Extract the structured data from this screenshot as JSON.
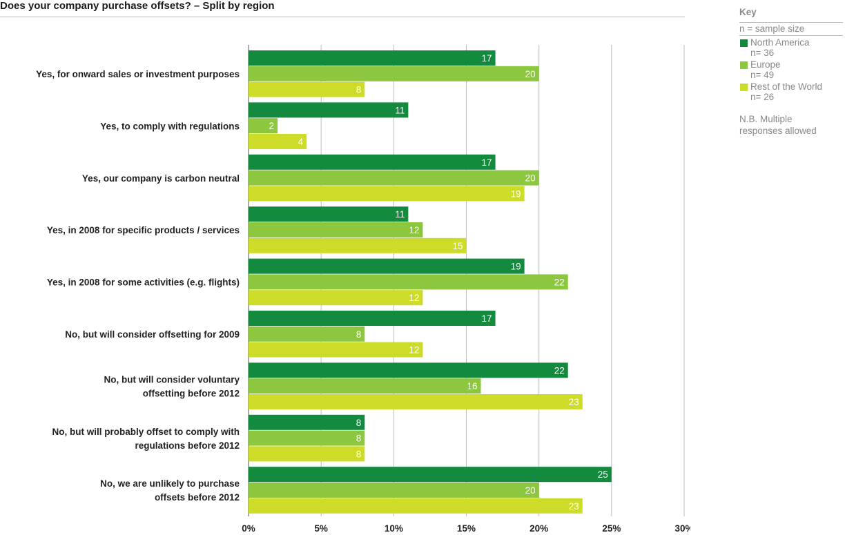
{
  "title": "Does your company purchase offsets? – Split by region",
  "key": {
    "title": "Key",
    "subtitle": "n = sample size",
    "note": "N.B. Multiple responses allowed"
  },
  "colors": {
    "north_america": "#138a3d",
    "europe": "#8dc63f",
    "rest_of_world": "#cddc29",
    "grid": "#bdbdbd"
  },
  "chart_data": {
    "type": "bar",
    "orientation": "horizontal",
    "categories": [
      [
        "Yes, for onward sales or investment purposes"
      ],
      [
        "Yes, to comply with regulations"
      ],
      [
        "Yes, our company is carbon neutral"
      ],
      [
        "Yes, in 2008 for specific products / services"
      ],
      [
        "Yes, in 2008 for some activities (e.g. flights)"
      ],
      [
        "No, but will consider offsetting for 2009"
      ],
      [
        "No, but will consider voluntary",
        "offsetting before 2012"
      ],
      [
        "No, but will probably offset to comply with",
        "regulations before 2012"
      ],
      [
        "No, we are unlikely to purchase",
        "offsets before 2012"
      ]
    ],
    "series": [
      {
        "name": "North America",
        "n": "n= 36",
        "values": [
          17,
          11,
          17,
          11,
          19,
          17,
          22,
          8,
          25
        ]
      },
      {
        "name": "Europe",
        "n": "n= 49",
        "values": [
          20,
          2,
          20,
          12,
          22,
          8,
          16,
          8,
          20
        ]
      },
      {
        "name": "Rest of the World",
        "n": "n= 26",
        "values": [
          8,
          4,
          19,
          15,
          12,
          12,
          23,
          8,
          23
        ]
      }
    ],
    "xlim": [
      0,
      30
    ],
    "xticks": [
      "0%",
      "5%",
      "10%",
      "15%",
      "20%",
      "25%",
      "30%"
    ],
    "grid": true,
    "legend_position": "right"
  }
}
